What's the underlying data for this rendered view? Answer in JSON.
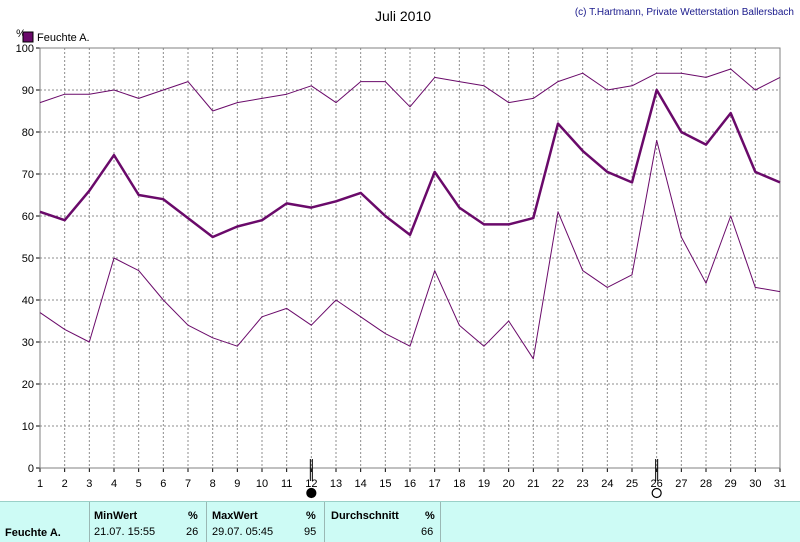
{
  "chart_data": {
    "type": "line",
    "title": "Juli 2010",
    "credit": "(c) T.Hartmann, Private Wetterstation Ballersbach",
    "ylabel": "%",
    "ylim": [
      0,
      100
    ],
    "yticks": [
      0,
      10,
      20,
      30,
      40,
      50,
      60,
      70,
      80,
      90,
      100
    ],
    "x": [
      1,
      2,
      3,
      4,
      5,
      6,
      7,
      8,
      9,
      10,
      11,
      12,
      13,
      14,
      15,
      16,
      17,
      18,
      19,
      20,
      21,
      22,
      23,
      24,
      25,
      26,
      27,
      28,
      29,
      30,
      31
    ],
    "grid": true,
    "legend_position": "top-left",
    "legend": [
      "Feuchte A."
    ],
    "color": "#6a0a6a",
    "moon_markers": [
      {
        "day": 12,
        "phase": "new-moon"
      },
      {
        "day": 26,
        "phase": "full-moon"
      }
    ],
    "series": [
      {
        "name": "Feuchte A.",
        "role": "max",
        "values": [
          87,
          89,
          89,
          90,
          88,
          90,
          92,
          85,
          87,
          88,
          89,
          91,
          87,
          92,
          92,
          86,
          93,
          92,
          91,
          87,
          88,
          92,
          94,
          90,
          91,
          94,
          94,
          93,
          95,
          90,
          93
        ]
      },
      {
        "name": "Feuchte A.",
        "role": "mean",
        "values": [
          61,
          59,
          66,
          74.5,
          65,
          64,
          59.5,
          55,
          57.5,
          59,
          63,
          62,
          63.5,
          65.5,
          60,
          55.5,
          70.5,
          62,
          58,
          58,
          59.5,
          82,
          75.5,
          70.5,
          68,
          90,
          80,
          77,
          84.5,
          70.5,
          68
        ]
      },
      {
        "name": "Feuchte A.",
        "role": "min",
        "values": [
          37,
          33,
          30,
          50,
          47,
          40,
          34,
          31,
          29,
          36,
          38,
          34,
          40,
          36,
          32,
          29,
          47,
          34,
          29,
          35,
          26,
          61,
          47,
          43,
          46,
          78,
          55,
          44,
          60,
          43,
          42
        ]
      }
    ]
  },
  "stats": {
    "series_label": "Feuchte A.",
    "min": {
      "header": "MinWert",
      "unit": "%",
      "time": "21.07.  15:55",
      "value": "26"
    },
    "max": {
      "header": "MaxWert",
      "unit": "%",
      "time": "29.07.  05:45",
      "value": "95"
    },
    "avg": {
      "header": "Durchschnitt",
      "unit": "%",
      "value": "66"
    }
  }
}
